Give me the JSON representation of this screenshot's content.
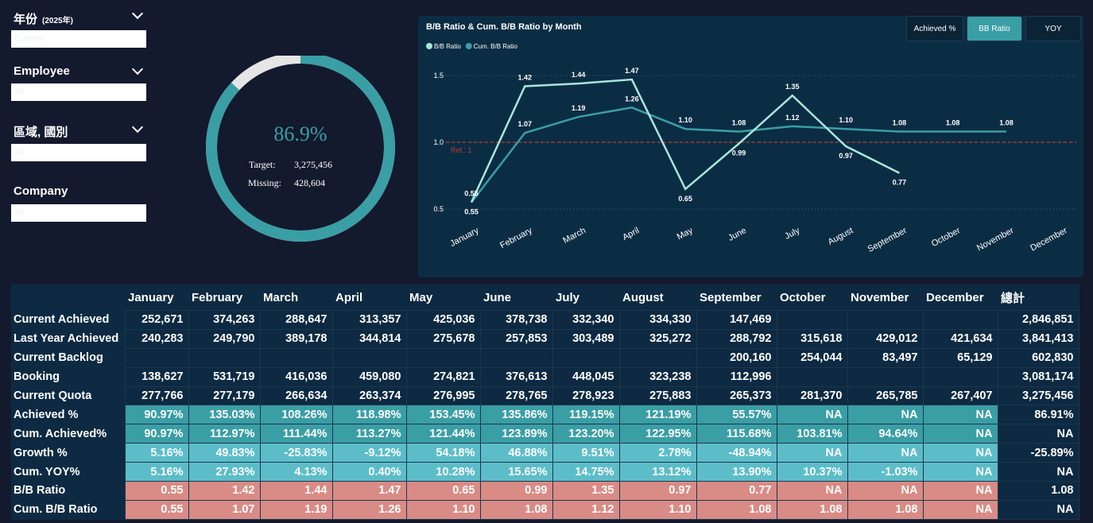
{
  "filters": [
    {
      "label": "年份",
      "note": "(2025年)",
      "value": "Current"
    },
    {
      "label": "Employee",
      "value": "All"
    },
    {
      "label": "區域, 國別",
      "value": "All"
    },
    {
      "label": "Company",
      "value": "All"
    }
  ],
  "gauge": {
    "percent": 86.9,
    "percent_label": "86.9%",
    "target_label": "Target:",
    "target": "3,275,456",
    "missing_label": "Missing:",
    "missing": "428,604"
  },
  "buttons": [
    {
      "label": "Achieved %",
      "active": false
    },
    {
      "label": "BB Ratio",
      "active": true
    },
    {
      "label": "YOY",
      "active": false
    }
  ],
  "chart_data": {
    "type": "line",
    "title": "B/B Ratio & Cum. B/B Ratio by Month",
    "categories": [
      "January",
      "February",
      "March",
      "April",
      "May",
      "June",
      "July",
      "August",
      "September",
      "October",
      "November",
      "December"
    ],
    "series": [
      {
        "name": "B/B Ratio",
        "color": "#a8e6d8",
        "values": [
          0.55,
          1.42,
          1.44,
          1.47,
          0.65,
          0.99,
          1.35,
          0.97,
          0.77,
          null,
          null,
          null
        ],
        "value_labels": [
          "0.55",
          "1.42",
          "1.44",
          "1.47",
          "0.65",
          "0.99",
          "1.35",
          "0.97",
          "0.77",
          null,
          null,
          null
        ]
      },
      {
        "name": "Cum. B/B Ratio",
        "color": "#3a9ea5",
        "values": [
          0.55,
          1.07,
          1.19,
          1.26,
          1.1,
          1.08,
          1.12,
          1.1,
          1.08,
          1.08,
          1.08,
          null
        ],
        "value_labels": [
          "0.55",
          "1.07",
          "1.19",
          "1.26",
          "1.10",
          "1.08",
          "1.12",
          "1.10",
          "1.08",
          "1.08",
          "1.08",
          null
        ]
      }
    ],
    "ylim": [
      0.45,
      1.6
    ],
    "yticks": [
      0.5,
      {
        "value": 1,
        "label": "1.0"
      },
      1.5
    ],
    "grid": true,
    "reference_line": {
      "value": 1,
      "label": "Ref.: 1",
      "color": "#c0392b"
    }
  },
  "table": {
    "columns": [
      "January",
      "February",
      "March",
      "April",
      "May",
      "June",
      "July",
      "August",
      "September",
      "October",
      "November",
      "December",
      "總計"
    ],
    "rows": [
      {
        "name": "Current Achieved",
        "cells": [
          "252,671",
          "374,263",
          "288,647",
          "313,357",
          "425,036",
          "378,738",
          "332,340",
          "334,330",
          "147,469",
          null,
          null,
          null,
          "2,846,851"
        ]
      },
      {
        "name": "Last Year Achieved",
        "cells": [
          "240,283",
          "249,790",
          "389,178",
          "344,814",
          "275,678",
          "257,853",
          "303,489",
          "325,272",
          "288,792",
          "315,618",
          "429,012",
          "421,634",
          "3,841,413"
        ]
      },
      {
        "name": "Current Backlog",
        "cells": [
          null,
          null,
          null,
          null,
          null,
          null,
          null,
          null,
          "200,160",
          "254,044",
          "83,497",
          "65,129",
          "602,830"
        ]
      },
      {
        "name": "Booking",
        "cells": [
          "138,627",
          "531,719",
          "416,036",
          "459,080",
          "274,821",
          "376,613",
          "448,045",
          "323,238",
          "112,996",
          null,
          null,
          null,
          "3,081,174"
        ]
      },
      {
        "name": "Current Quota",
        "cells": [
          "277,766",
          "277,179",
          "266,634",
          "263,374",
          "276,995",
          "278,765",
          "278,923",
          "275,883",
          "265,373",
          "281,370",
          "265,785",
          "267,407",
          "3,275,456"
        ]
      },
      {
        "name": "Achieved %",
        "cells": [
          "90.97%",
          "135.03%",
          "108.26%",
          "118.98%",
          "153.45%",
          "135.86%",
          "119.15%",
          "121.19%",
          "55.57%",
          "NA",
          "NA",
          "NA",
          "86.91%"
        ]
      },
      {
        "name": "Cum. Achieved%",
        "cells": [
          "90.97%",
          "112.97%",
          "111.44%",
          "113.27%",
          "121.44%",
          "123.89%",
          "123.20%",
          "122.95%",
          "115.68%",
          "103.81%",
          "94.64%",
          "NA",
          "NA"
        ]
      },
      {
        "name": "Growth %",
        "cells": [
          "5.16%",
          "49.83%",
          "-25.83%",
          "-9.12%",
          "54.18%",
          "46.88%",
          "9.51%",
          "2.78%",
          "-48.94%",
          "NA",
          "NA",
          "NA",
          "-25.89%"
        ]
      },
      {
        "name": "Cum. YOY%",
        "cells": [
          "5.16%",
          "27.93%",
          "4.13%",
          "0.40%",
          "10.28%",
          "15.65%",
          "14.75%",
          "13.12%",
          "13.90%",
          "10.37%",
          "-1.03%",
          "NA",
          "NA"
        ]
      },
      {
        "name": "B/B Ratio",
        "cells": [
          "0.55",
          "1.42",
          "1.44",
          "1.47",
          "0.65",
          "0.99",
          "1.35",
          "0.97",
          "0.77",
          "NA",
          "NA",
          "NA",
          "1.08"
        ]
      },
      {
        "name": "Cum. B/B Ratio",
        "cells": [
          "0.55",
          "1.07",
          "1.19",
          "1.26",
          "1.10",
          "1.08",
          "1.12",
          "1.10",
          "1.08",
          "1.08",
          "1.08",
          "NA",
          "NA"
        ]
      }
    ]
  }
}
